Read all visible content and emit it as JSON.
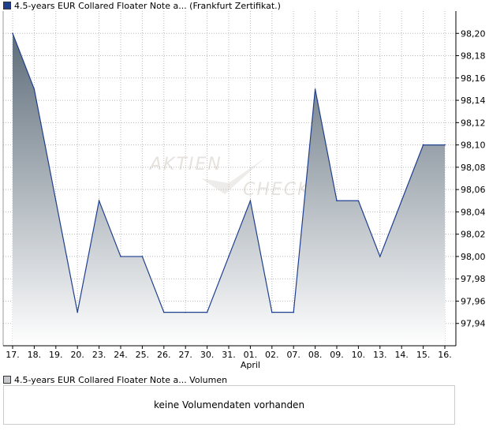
{
  "price_legend": {
    "label": "4.5-years EUR Collared Floater Note a... (Frankfurt Zertifikat.)"
  },
  "volume_legend": {
    "label": "4.5-years EUR Collared Floater Note a... Volumen"
  },
  "volume_panel": {
    "message": "keine Volumendaten vorhanden"
  },
  "watermark": {
    "line1": "AKTIEN",
    "line2": "CHECK"
  },
  "colors": {
    "line": "#1f3f8f",
    "fill_top": "#5e6d7a",
    "fill_bottom": "#ffffff",
    "grid": "#b8b8b8",
    "axis": "#000000"
  },
  "chart_data": {
    "type": "area",
    "categories": [
      "17.",
      "18.",
      "19.",
      "20.",
      "23.",
      "24.",
      "25.",
      "26.",
      "27.",
      "30.",
      "31.",
      "01.",
      "02.",
      "07.",
      "08.",
      "09.",
      "10.",
      "13.",
      "14.",
      "15.",
      "16."
    ],
    "month_label": "April",
    "month_label_under": "01.",
    "values": [
      98.2,
      98.15,
      98.05,
      97.95,
      98.05,
      98.0,
      98.0,
      97.95,
      97.95,
      97.95,
      98.0,
      98.05,
      97.95,
      97.95,
      98.15,
      98.05,
      98.05,
      98.0,
      98.05,
      98.1,
      98.1
    ],
    "ylim": [
      97.92,
      98.22
    ],
    "yticks": [
      "98,20",
      "98,18",
      "98,16",
      "98,14",
      "98,12",
      "98,10",
      "98,08",
      "98,06",
      "98,04",
      "98,02",
      "98,00",
      "97,98",
      "97,96",
      "97,94"
    ],
    "ytick_values": [
      98.2,
      98.18,
      98.16,
      98.14,
      98.12,
      98.1,
      98.08,
      98.06,
      98.04,
      98.02,
      98.0,
      97.98,
      97.96,
      97.94
    ],
    "grid": true
  }
}
